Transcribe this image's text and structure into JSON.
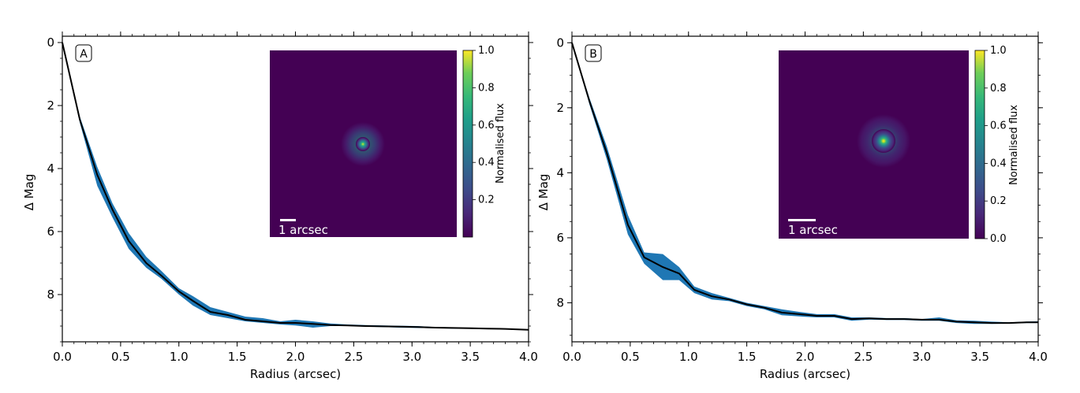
{
  "chart_data": [
    {
      "type": "line",
      "panel_label": "A",
      "xlabel": "Radius (arcsec)",
      "ylabel": "Δ Mag",
      "xlim": [
        0.0,
        4.0
      ],
      "ylim": [
        9.5,
        -0.2
      ],
      "y_inverted": true,
      "x_ticks": [
        "0.0",
        "0.5",
        "1.0",
        "1.5",
        "2.0",
        "2.5",
        "3.0",
        "3.5",
        "4.0"
      ],
      "y_ticks": [
        "0",
        "2",
        "4",
        "6",
        "8"
      ],
      "series": [
        {
          "x": [
            0.0,
            0.15,
            0.3,
            0.43,
            0.57,
            0.72,
            0.85,
            1.0,
            1.12,
            1.27,
            1.42,
            1.57,
            1.72,
            1.87,
            2.0,
            2.15,
            2.3,
            2.45,
            2.6,
            2.75,
            2.9,
            3.05,
            3.2,
            3.35,
            3.5,
            3.65,
            3.8,
            4.0
          ],
          "y": [
            0.0,
            2.45,
            4.2,
            5.3,
            6.3,
            7.0,
            7.4,
            7.9,
            8.2,
            8.55,
            8.65,
            8.8,
            8.85,
            8.9,
            8.9,
            8.93,
            8.97,
            8.98,
            9.0,
            9.01,
            9.02,
            9.03,
            9.05,
            9.06,
            9.07,
            9.08,
            9.09,
            9.12
          ],
          "y_lower": [
            0.0,
            2.55,
            4.55,
            5.55,
            6.55,
            7.15,
            7.5,
            8.0,
            8.35,
            8.65,
            8.75,
            8.85,
            8.9,
            8.95,
            8.98,
            9.05,
            9.0,
            9.0,
            9.02,
            9.03,
            9.05,
            9.06,
            9.07,
            9.08,
            9.08,
            9.09,
            9.1,
            9.13
          ],
          "y_upper": [
            0.0,
            2.35,
            3.95,
            5.1,
            6.05,
            6.8,
            7.25,
            7.8,
            8.05,
            8.4,
            8.55,
            8.7,
            8.75,
            8.85,
            8.8,
            8.85,
            8.92,
            8.95,
            8.97,
            8.98,
            8.99,
            9.0,
            9.03,
            9.04,
            9.06,
            9.07,
            9.08,
            9.11
          ]
        }
      ],
      "inset": {
        "scalebar_label": "1 arcsec",
        "colorbar_label": "Normalised flux",
        "colorbar_ticks": [
          "0.2",
          "0.4",
          "0.6",
          "0.8",
          "1.0"
        ]
      }
    },
    {
      "type": "line",
      "panel_label": "B",
      "xlabel": "Radius (arcsec)",
      "ylabel": "Δ Mag",
      "xlim": [
        0.0,
        4.0
      ],
      "ylim": [
        9.2,
        -0.2
      ],
      "y_inverted": true,
      "x_ticks": [
        "0.0",
        "0.5",
        "1.0",
        "1.5",
        "2.0",
        "2.5",
        "3.0",
        "3.5",
        "4.0"
      ],
      "y_ticks": [
        "0",
        "2",
        "4",
        "6",
        "8"
      ],
      "series": [
        {
          "x": [
            0.0,
            0.15,
            0.3,
            0.48,
            0.62,
            0.78,
            0.92,
            1.05,
            1.2,
            1.35,
            1.5,
            1.65,
            1.8,
            1.95,
            2.1,
            2.25,
            2.4,
            2.55,
            2.7,
            2.85,
            3.0,
            3.15,
            3.3,
            3.45,
            3.6,
            3.75,
            3.9,
            4.0
          ],
          "y": [
            0.0,
            1.8,
            3.4,
            5.6,
            6.6,
            6.9,
            7.1,
            7.6,
            7.8,
            7.9,
            8.05,
            8.15,
            8.3,
            8.35,
            8.4,
            8.4,
            8.5,
            8.48,
            8.5,
            8.5,
            8.52,
            8.52,
            8.58,
            8.6,
            8.62,
            8.62,
            8.6,
            8.6
          ],
          "y_lower": [
            0.0,
            1.9,
            3.6,
            5.9,
            6.8,
            7.3,
            7.3,
            7.7,
            7.9,
            7.95,
            8.1,
            8.2,
            8.38,
            8.42,
            8.45,
            8.45,
            8.55,
            8.52,
            8.53,
            8.53,
            8.55,
            8.55,
            8.62,
            8.65,
            8.65,
            8.64,
            8.62,
            8.62
          ],
          "y_upper": [
            0.0,
            1.7,
            3.2,
            5.3,
            6.45,
            6.5,
            6.9,
            7.5,
            7.7,
            7.85,
            8.0,
            8.1,
            8.2,
            8.28,
            8.35,
            8.35,
            8.45,
            8.45,
            8.47,
            8.47,
            8.5,
            8.45,
            8.54,
            8.55,
            8.58,
            8.6,
            8.58,
            8.57
          ]
        }
      ],
      "inset": {
        "scalebar_label": "1 arcsec",
        "colorbar_label": "Normalised flux",
        "colorbar_ticks": [
          "0.0",
          "0.2",
          "0.4",
          "0.6",
          "0.8",
          "1.0"
        ]
      }
    }
  ],
  "colors": {
    "band": "#1f77b4",
    "line": "#000000",
    "inset_background": "#440154"
  }
}
